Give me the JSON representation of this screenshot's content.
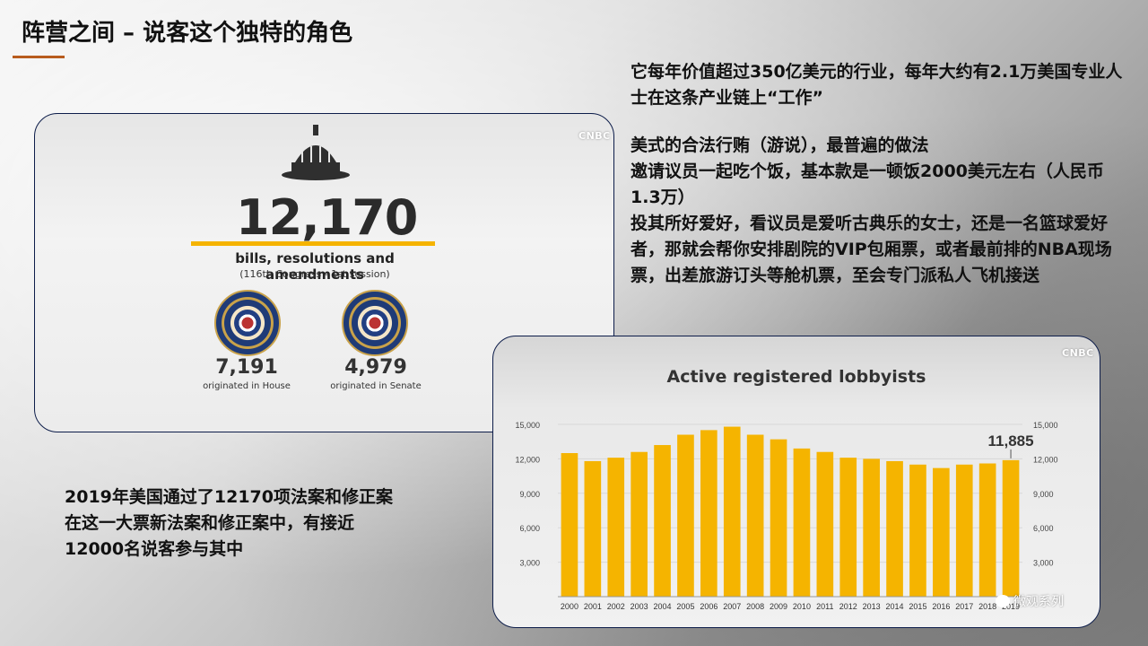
{
  "slide": {
    "title": "阵营之间 – 说客这个独特的角色",
    "right_paragraphs": [
      "它每年价值超过350亿美元的行业，每年大约有2.1万美国专业人士在这条产业链上“工作”",
      "美式的合法行贿（游说），最普遍的做法",
      "邀请议员一起吃个饭，基本款是一顿饭2000美元左右（人民币1.3万）",
      "投其所好爱好，看议员是爱听古典乐的女士，还是一名篮球爱好者，那就会帮你安排剧院的VIP包厢票，或者最前排的NBA现场票，出差旅游订头等舱机票，至会专门派私人飞机接送"
    ],
    "left_paragraphs": [
      "2019年美国通过了12170项法案和修正案",
      "在这一大票新法案和修正案中，有接近",
      "12000名说客参与其中"
    ],
    "watermark": "微观系列"
  },
  "card1": {
    "logo": "CNBC",
    "total": "12,170",
    "subtitle": "bills, resolutions and amendments",
    "session": "(116th Congress - 1st session)",
    "house_count": "7,191",
    "house_label": "originated in House",
    "senate_count": "4,979",
    "senate_label": "originated in Senate",
    "icons": [
      "capitol-dome-icon",
      "house-seal-icon",
      "senate-seal-icon"
    ]
  },
  "card2": {
    "logo": "CNBC"
  },
  "chart_data": {
    "type": "bar",
    "title": "Active registered lobbyists",
    "categories": [
      "2000",
      "2001",
      "2002",
      "2003",
      "2004",
      "2005",
      "2006",
      "2007",
      "2008",
      "2009",
      "2010",
      "2011",
      "2012",
      "2013",
      "2014",
      "2015",
      "2016",
      "2017",
      "2018",
      "2019"
    ],
    "values": [
      12500,
      11800,
      12100,
      12600,
      13200,
      14100,
      14500,
      14800,
      14100,
      13700,
      12900,
      12600,
      12100,
      12000,
      11800,
      11500,
      11200,
      11500,
      11600,
      11885
    ],
    "annotation": {
      "label": "11,885",
      "category": "2019"
    },
    "ylim": [
      0,
      15000
    ],
    "yticks": [
      3000,
      6000,
      9000,
      12000,
      15000
    ],
    "ytick_labels": [
      "3,000",
      "6,000",
      "9,000",
      "12,000",
      "15,000"
    ],
    "axes": "both-sides",
    "grid": true,
    "bar_color": "#f5b400"
  }
}
